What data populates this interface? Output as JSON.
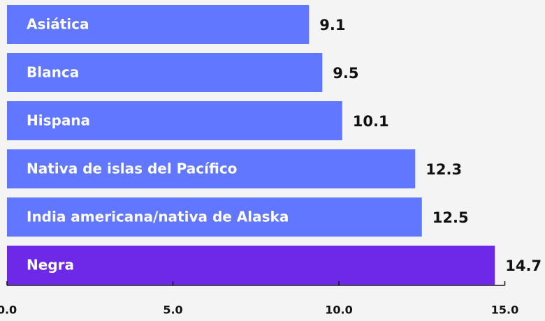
{
  "chart_data": {
    "type": "hbar",
    "categories": [
      "Asiática",
      "Blanca",
      "Hispana",
      "Nativa de islas del Pacífico",
      "India americana/nativa de Alaska",
      "Negra"
    ],
    "values": [
      9.1,
      9.5,
      10.1,
      12.3,
      12.5,
      14.7
    ],
    "colors": [
      "#6177ff",
      "#6177ff",
      "#6177ff",
      "#6177ff",
      "#6177ff",
      "#6d28e8"
    ],
    "xlim": [
      0,
      15
    ],
    "xticks": [
      {
        "value": 0,
        "label": "0.0"
      },
      {
        "value": 5,
        "label": "5.0"
      },
      {
        "value": 10,
        "label": "10.0"
      },
      {
        "value": 15,
        "label": "15.0"
      }
    ]
  }
}
